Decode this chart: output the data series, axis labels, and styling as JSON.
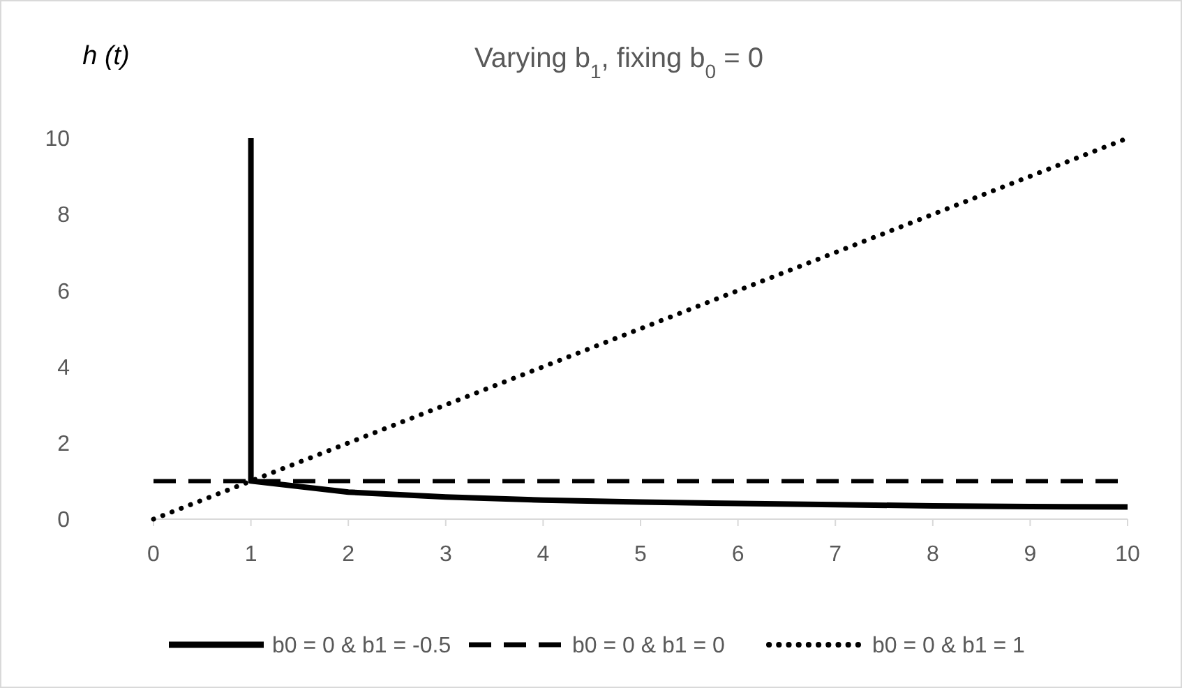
{
  "chart_data": {
    "type": "line",
    "title": "Varying b$_{1}$, fixing b$_{0}$ = 0",
    "ylabel": "h (t)",
    "xlim": [
      0,
      10
    ],
    "xticks": [
      0,
      1,
      2,
      3,
      4,
      5,
      6,
      7,
      8,
      9,
      10
    ],
    "ylim": [
      0,
      10
    ],
    "yticks": [
      0,
      2,
      4,
      6,
      8,
      10
    ],
    "grid": false,
    "legend": "bottom",
    "marker": "none",
    "series": [
      {
        "name": "b0 = 0 & b1 = -0.5",
        "color": "#000000",
        "line_style": "solid",
        "x": [
          1,
          1,
          2,
          3,
          4,
          5,
          6,
          7,
          8,
          9,
          10
        ],
        "values": [
          10,
          1,
          0.71,
          0.58,
          0.5,
          0.45,
          0.41,
          0.38,
          0.35,
          0.33,
          0.32
        ]
      },
      {
        "name": "b0 = 0 & b1 = 0",
        "color": "#000000",
        "line_style": "dashed",
        "x": [
          0,
          1,
          2,
          3,
          4,
          5,
          6,
          7,
          8,
          9,
          10
        ],
        "values": [
          1,
          1,
          1,
          1,
          1,
          1,
          1,
          1,
          1,
          1,
          1
        ]
      },
      {
        "name": "b0 = 0 & b1 = 1",
        "color": "#000000",
        "line_style": "dotted",
        "x": [
          0,
          1,
          2,
          3,
          4,
          5,
          6,
          7,
          8,
          9,
          10
        ],
        "values": [
          0,
          1,
          2,
          3,
          4,
          5,
          6,
          7,
          8,
          9,
          10
        ]
      }
    ]
  }
}
